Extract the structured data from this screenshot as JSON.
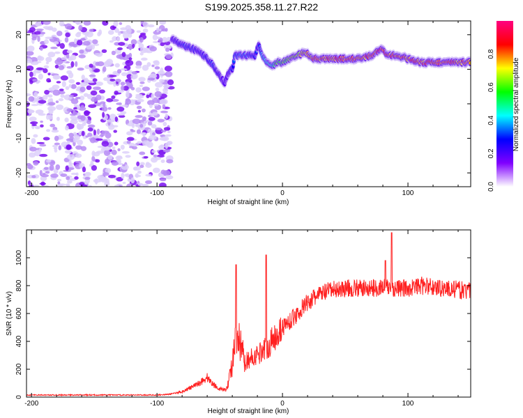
{
  "title": "S199.2025.358.11.27.R22",
  "chart_data": [
    {
      "type": "heatmap",
      "xlabel": "Height of straight line (km)",
      "ylabel": "Frequency (Hz)",
      "xlim": [
        -204,
        150
      ],
      "ylim": [
        -24,
        24
      ],
      "xticks": [
        -200,
        -100,
        0,
        100
      ],
      "yticks": [
        -20,
        -10,
        0,
        10,
        20
      ],
      "colorbar": {
        "label": "Normalized spectral amplitude",
        "ticks": [
          "0.0",
          "0.2",
          "0.4",
          "0.6",
          "0.8"
        ],
        "range": [
          0,
          1
        ],
        "stops": [
          "#ffffff",
          "#8000ff",
          "#0000ff",
          "#00ffff",
          "#00ff00",
          "#ffff00",
          "#ff0000",
          "#ff0080"
        ]
      },
      "noise_region_x": [
        -204,
        -88
      ],
      "ridge": {
        "x": [
          -88,
          -80,
          -72,
          -66,
          -60,
          -55,
          -50,
          -46,
          -43,
          -40,
          -38,
          -30,
          -22,
          -19,
          -16,
          -12,
          -8,
          -4,
          0,
          6,
          12,
          18,
          25,
          40,
          60,
          72,
          78,
          84,
          92,
          100,
          110,
          130,
          150
        ],
        "frequency": [
          19,
          17,
          16,
          15,
          13,
          11,
          8,
          6,
          9,
          10,
          14,
          14,
          14,
          17,
          14,
          12,
          11,
          12,
          12,
          13,
          14,
          15,
          13,
          13,
          13,
          14,
          16,
          14,
          14,
          13,
          12,
          12,
          12
        ],
        "amplitude": [
          0.2,
          0.3,
          0.3,
          0.25,
          0.3,
          0.3,
          0.25,
          0.2,
          0.2,
          0.3,
          0.35,
          0.35,
          0.3,
          0.3,
          0.4,
          0.45,
          0.5,
          0.6,
          0.6,
          0.65,
          0.7,
          0.75,
          0.8,
          0.85,
          0.85,
          0.85,
          0.9,
          0.85,
          0.85,
          0.85,
          0.85,
          0.85,
          0.8
        ]
      }
    },
    {
      "type": "line",
      "xlabel": "Height of straight line (km)",
      "ylabel": "SNR (10 * v/v)",
      "xlim": [
        -204,
        150
      ],
      "ylim": [
        0,
        1200
      ],
      "xticks": [
        -200,
        -100,
        0,
        100
      ],
      "yticks": [
        0,
        200,
        400,
        600,
        800,
        1000
      ],
      "color": "#ff2020",
      "series": [
        {
          "name": "SNR",
          "x": [
            -204,
            -150,
            -100,
            -90,
            -80,
            -70,
            -60,
            -55,
            -50,
            -45,
            -42,
            -38,
            -35,
            -30,
            -25,
            -20,
            -15,
            -10,
            -5,
            0,
            5,
            10,
            20,
            30,
            40,
            50,
            60,
            70,
            80,
            90,
            100,
            110,
            120,
            130,
            140,
            150
          ],
          "values": [
            15,
            15,
            15,
            20,
            40,
            80,
            140,
            90,
            60,
            50,
            150,
            350,
            400,
            250,
            280,
            300,
            350,
            380,
            450,
            500,
            540,
            580,
            680,
            740,
            770,
            780,
            780,
            780,
            790,
            780,
            780,
            800,
            790,
            780,
            770,
            760
          ]
        }
      ],
      "spikes": [
        {
          "x": -37,
          "value": 950
        },
        {
          "x": -13,
          "value": 1020
        },
        {
          "x": 87,
          "value": 1180
        },
        {
          "x": 82,
          "value": 980
        }
      ]
    }
  ]
}
